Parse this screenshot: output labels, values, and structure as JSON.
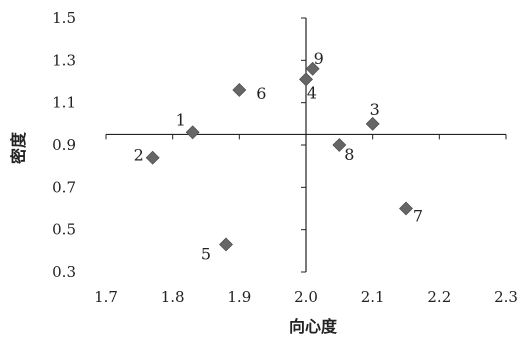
{
  "chart_data": {
    "type": "scatter",
    "xlabel": "向心度",
    "ylabel": "密度",
    "xlim": [
      1.7,
      2.3
    ],
    "ylim": [
      0.3,
      1.5
    ],
    "x_ticks": [
      "1.7",
      "1.8",
      "1.9",
      "2.0",
      "2.1",
      "2.2",
      "2.3"
    ],
    "y_ticks": [
      "1.5",
      "1.3",
      "1.1",
      "0.9",
      "0.7",
      "0.5",
      "0.3"
    ],
    "origin": {
      "x": 2.0,
      "y": 0.95
    },
    "grid": false,
    "legend": "none",
    "marker_color": "#666666",
    "points": [
      {
        "label": "1",
        "x": 1.83,
        "y": 0.96
      },
      {
        "label": "2",
        "x": 1.77,
        "y": 0.84
      },
      {
        "label": "3",
        "x": 2.1,
        "y": 1.0
      },
      {
        "label": "4",
        "x": 2.0,
        "y": 1.21
      },
      {
        "label": "5",
        "x": 1.88,
        "y": 0.43
      },
      {
        "label": "6",
        "x": 1.9,
        "y": 1.16
      },
      {
        "label": "7",
        "x": 2.15,
        "y": 0.6
      },
      {
        "label": "8",
        "x": 2.05,
        "y": 0.9
      },
      {
        "label": "9",
        "x": 2.01,
        "y": 1.26
      }
    ]
  }
}
